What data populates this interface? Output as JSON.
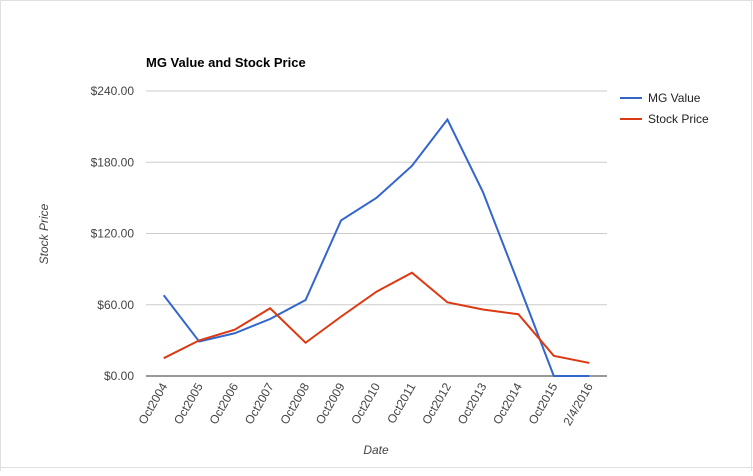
{
  "chart_data": {
    "type": "line",
    "title": "MG Value and Stock Price",
    "x_label": "Date",
    "y_label": "Stock Price",
    "categories": [
      "Oct2004",
      "Oct2005",
      "Oct2006",
      "Oct2007",
      "Oct2008",
      "Oct2009",
      "Oct2010",
      "Oct2011",
      "Oct2012",
      "Oct2013",
      "Oct2014",
      "Oct2015",
      "2/4/2016"
    ],
    "series": [
      {
        "name": "MG Value",
        "color": "#3366cc",
        "values": [
          68,
          29,
          36,
          48,
          64,
          131,
          150,
          177,
          216,
          155,
          78,
          0,
          0
        ]
      },
      {
        "name": "Stock Price",
        "color": "#dc3912",
        "values": [
          15,
          30,
          39,
          57,
          28,
          50,
          71,
          87,
          62,
          56,
          52,
          17,
          11
        ]
      }
    ],
    "ylim": [
      0,
      240
    ],
    "yticks": [
      {
        "value": 0,
        "label": "$0.00"
      },
      {
        "value": 60,
        "label": "$60.00"
      },
      {
        "value": 120,
        "label": "$120.00"
      },
      {
        "value": 180,
        "label": "$180.00"
      },
      {
        "value": 240,
        "label": "$240.00"
      }
    ],
    "grid": true,
    "legend": "right"
  }
}
